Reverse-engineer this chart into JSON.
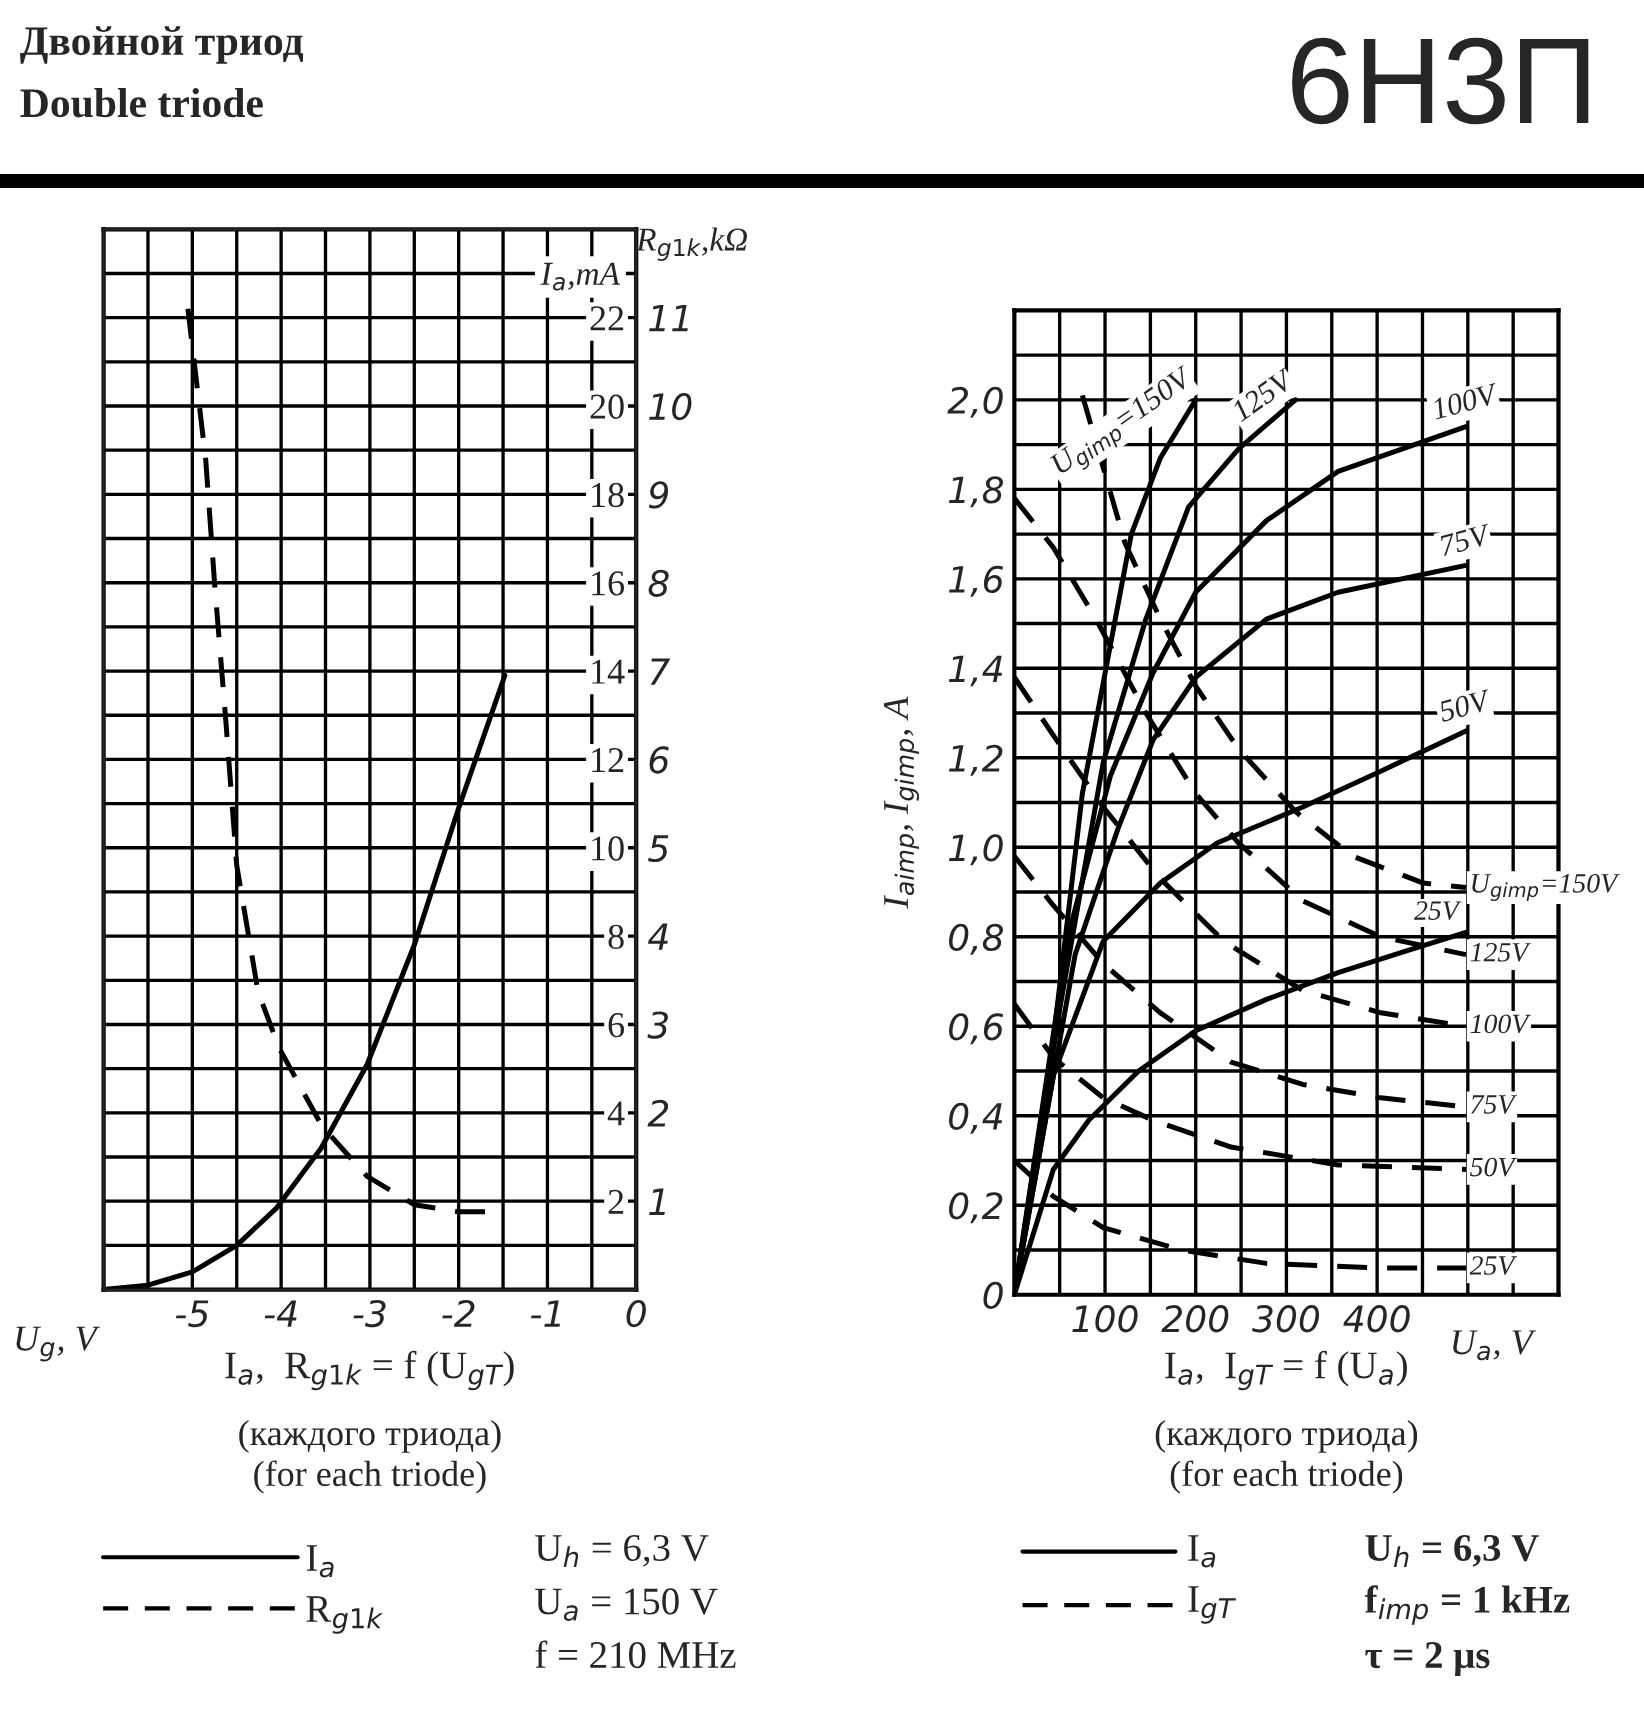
{
  "chart_data": [
    {
      "type": "line",
      "title": "I$_{a}$,  R$_{g1k}$ = f (U$_{gT}$)",
      "subtitle": "(каждого триода)\n(for each triode)",
      "xlabel": "U$_{g}$, V",
      "ylabel": "I$_{a}$,mA",
      "y2label": "R$_{g1k}$,kΩ",
      "xlim": [
        -6,
        0
      ],
      "ylim": [
        0,
        24
      ],
      "y2lim": [
        0,
        12
      ],
      "xticks": [
        {
          "value": -6,
          "label": null
        },
        {
          "value": -5.5,
          "label": null
        },
        -5,
        {
          "value": -4.5,
          "label": null
        },
        -4,
        {
          "value": -3.5,
          "label": null
        },
        -3,
        {
          "value": -2.5,
          "label": null
        },
        -2,
        {
          "value": -1.5,
          "label": null
        },
        -1,
        {
          "value": -0.5,
          "label": null
        },
        0
      ],
      "yticks": [
        {
          "value": 1,
          "label": null
        },
        2,
        {
          "value": 3,
          "label": null
        },
        4,
        {
          "value": 5,
          "label": null
        },
        6,
        {
          "value": 7,
          "label": null
        },
        8,
        {
          "value": 9,
          "label": null
        },
        10,
        {
          "value": 11,
          "label": null
        },
        12,
        {
          "value": 13,
          "label": null
        },
        14,
        {
          "value": 15,
          "label": null
        },
        16,
        {
          "value": 17,
          "label": null
        },
        18,
        {
          "value": 19,
          "label": null
        },
        20,
        {
          "value": 21,
          "label": null
        },
        22,
        {
          "value": 23,
          "label": null
        }
      ],
      "y2ticks": [
        1,
        2,
        3,
        4,
        5,
        6,
        7,
        8,
        9,
        10,
        11
      ],
      "grid": true,
      "legend": "bottom",
      "series": [
        {
          "name": "I$_{a}$",
          "color": "#000000",
          "line_style": "solid",
          "x": [
            -6,
            -5.5,
            -5,
            -4.5,
            -4.05,
            -3.55,
            -3.03,
            -2.5,
            -2,
            -1.48
          ],
          "values": [
            0,
            0.1,
            0.4,
            1.0,
            1.85,
            3.2,
            5.1,
            7.8,
            10.9,
            13.9
          ]
        },
        {
          "name": "R$_{g1k}$",
          "color": "#000000",
          "line_style": "dashed",
          "axis": "y2",
          "x": [
            -5.05,
            -4.85,
            -4.75,
            -4.62,
            -4.5,
            -4.26,
            -4.02,
            -3.54,
            -3.03,
            -2.5,
            -2,
            -1.55
          ],
          "values": [
            11.1,
            9.4,
            8.0,
            6.4,
            4.8,
            3.37,
            2.73,
            1.85,
            1.28,
            0.96,
            0.88,
            0.88
          ]
        }
      ],
      "annotations": [
        "Двойной триод",
        "Double triode",
        "6Н3П",
        "U$_{h}$ = 6,3 V",
        "U$_{a}$ = 150 V",
        "f = 210 MHz"
      ]
    },
    {
      "type": "line",
      "title": "I$_{a}$,  I$_{gT}$ = f (U$_{a}$)",
      "subtitle": "(каждого триода)\n(for each triode)",
      "xlabel": "U$_{a}$, V",
      "ylabel": "I$_{aimp}$, I$_{gimp}$, A",
      "xlim": [
        0,
        600
      ],
      "ylim": [
        0,
        2.2
      ],
      "xticks": [
        {
          "value": 0,
          "label": null
        },
        {
          "value": 50,
          "label": null
        },
        100,
        {
          "value": 150,
          "label": null
        },
        200,
        {
          "value": 250,
          "label": null
        },
        300,
        {
          "value": 350,
          "label": null
        },
        400,
        {
          "value": 450,
          "label": null
        },
        {
          "value": 500,
          "label": null
        },
        {
          "value": 550,
          "label": null
        },
        {
          "value": 600,
          "label": null
        }
      ],
      "yticks": [
        {
          "value": 0,
          "label": "0"
        },
        {
          "value": 0.1,
          "label": null
        },
        {
          "value": 0.2,
          "label": "0,2"
        },
        {
          "value": 0.3,
          "label": null
        },
        {
          "value": 0.4,
          "label": "0,4"
        },
        {
          "value": 0.5,
          "label": null
        },
        {
          "value": 0.6,
          "label": "0,6"
        },
        {
          "value": 0.7,
          "label": null
        },
        {
          "value": 0.8,
          "label": "0,8"
        },
        {
          "value": 0.9,
          "label": null
        },
        {
          "value": 1.0,
          "label": "1,0"
        },
        {
          "value": 1.1,
          "label": null
        },
        {
          "value": 1.2,
          "label": "1,2"
        },
        {
          "value": 1.3,
          "label": null
        },
        {
          "value": 1.4,
          "label": "1,4"
        },
        {
          "value": 1.5,
          "label": null
        },
        {
          "value": 1.6,
          "label": "1,6"
        },
        {
          "value": 1.7,
          "label": null
        },
        {
          "value": 1.8,
          "label": "1,8"
        },
        {
          "value": 1.9,
          "label": null
        },
        {
          "value": 2.0,
          "label": "2,0"
        },
        {
          "value": 2.1,
          "label": null
        },
        {
          "value": 2.2,
          "label": null
        }
      ],
      "grid": true,
      "series": [
        {
          "name": "U$_{gimp}$=150V",
          "color": "#000000",
          "line_style": "solid",
          "x": [
            0,
            43,
            75,
            102,
            129,
            161,
            200
          ],
          "values": [
            0,
            0.57,
            1.12,
            1.41,
            1.7,
            1.87,
            2.0
          ]
        },
        {
          "name": "125V",
          "color": "#000000",
          "line_style": "solid",
          "x": [
            0,
            51,
            98,
            145,
            192,
            247,
            310
          ],
          "values": [
            0,
            0.65,
            1.19,
            1.51,
            1.76,
            1.89,
            2.0
          ]
        },
        {
          "name": "100V",
          "color": "#000000",
          "line_style": "solid",
          "x": [
            0,
            59,
            106,
            153,
            200,
            278,
            357,
            498
          ],
          "values": [
            0,
            0.8,
            1.16,
            1.39,
            1.57,
            1.73,
            1.84,
            1.94
          ]
        },
        {
          "name": "75V",
          "color": "#000000",
          "line_style": "solid",
          "x": [
            0,
            67,
            114,
            153,
            200,
            278,
            357,
            498
          ],
          "values": [
            0,
            0.76,
            1.04,
            1.24,
            1.38,
            1.51,
            1.57,
            1.63
          ]
        },
        {
          "name": "50V",
          "color": "#000000",
          "line_style": "solid",
          "x": [
            0,
            43,
            98,
            161,
            224,
            318,
            404,
            498
          ],
          "values": [
            0,
            0.49,
            0.79,
            0.92,
            1.01,
            1.09,
            1.17,
            1.26
          ]
        },
        {
          "name": "25V",
          "color": "#000000",
          "line_style": "solid",
          "x": [
            0,
            43,
            82,
            137,
            200,
            278,
            357,
            435,
            498
          ],
          "values": [
            0,
            0.28,
            0.39,
            0.5,
            0.59,
            0.66,
            0.72,
            0.77,
            0.81
          ]
        },
        {
          "name": "U$_{gimp}$=150V",
          "color": "#000000",
          "line_style": "dashed",
          "x": [
            75,
            122,
            161,
            200,
            247,
            310,
            373,
            451,
            498
          ],
          "values": [
            2.01,
            1.68,
            1.51,
            1.36,
            1.22,
            1.08,
            0.98,
            0.92,
            0.91
          ]
        },
        {
          "name": "125V",
          "color": "#000000",
          "line_style": "dashed",
          "x": [
            0,
            43,
            90,
            145,
            200,
            247,
            318,
            404,
            498
          ],
          "values": [
            1.78,
            1.67,
            1.51,
            1.3,
            1.12,
            1.01,
            0.88,
            0.8,
            0.76
          ]
        },
        {
          "name": "100V",
          "color": "#000000",
          "line_style": "dashed",
          "x": [
            0,
            43,
            98,
            161,
            231,
            318,
            404,
            498
          ],
          "values": [
            1.38,
            1.25,
            1.09,
            0.93,
            0.79,
            0.68,
            0.63,
            0.6
          ]
        },
        {
          "name": "75V",
          "color": "#000000",
          "line_style": "dashed",
          "x": [
            0,
            43,
            98,
            161,
            239,
            318,
            404,
            498
          ],
          "values": [
            0.98,
            0.87,
            0.74,
            0.63,
            0.52,
            0.47,
            0.44,
            0.42
          ]
        },
        {
          "name": "50V",
          "color": "#000000",
          "line_style": "dashed",
          "x": [
            0,
            43,
            98,
            153,
            239,
            357,
            498
          ],
          "values": [
            0.65,
            0.53,
            0.44,
            0.39,
            0.33,
            0.29,
            0.28
          ]
        },
        {
          "name": "25V",
          "color": "#000000",
          "line_style": "dashed",
          "x": [
            0,
            43,
            98,
            184,
            278,
            396,
            498
          ],
          "values": [
            0.3,
            0.22,
            0.15,
            0.1,
            0.07,
            0.06,
            0.06
          ]
        }
      ],
      "annotations": [
        "I$_{a}$",
        "I$_{gT}$",
        "U$_{h}$ = 6,3 V",
        "f$_{imp}$ = 1 kHz",
        "τ = 2 μs"
      ]
    }
  ]
}
